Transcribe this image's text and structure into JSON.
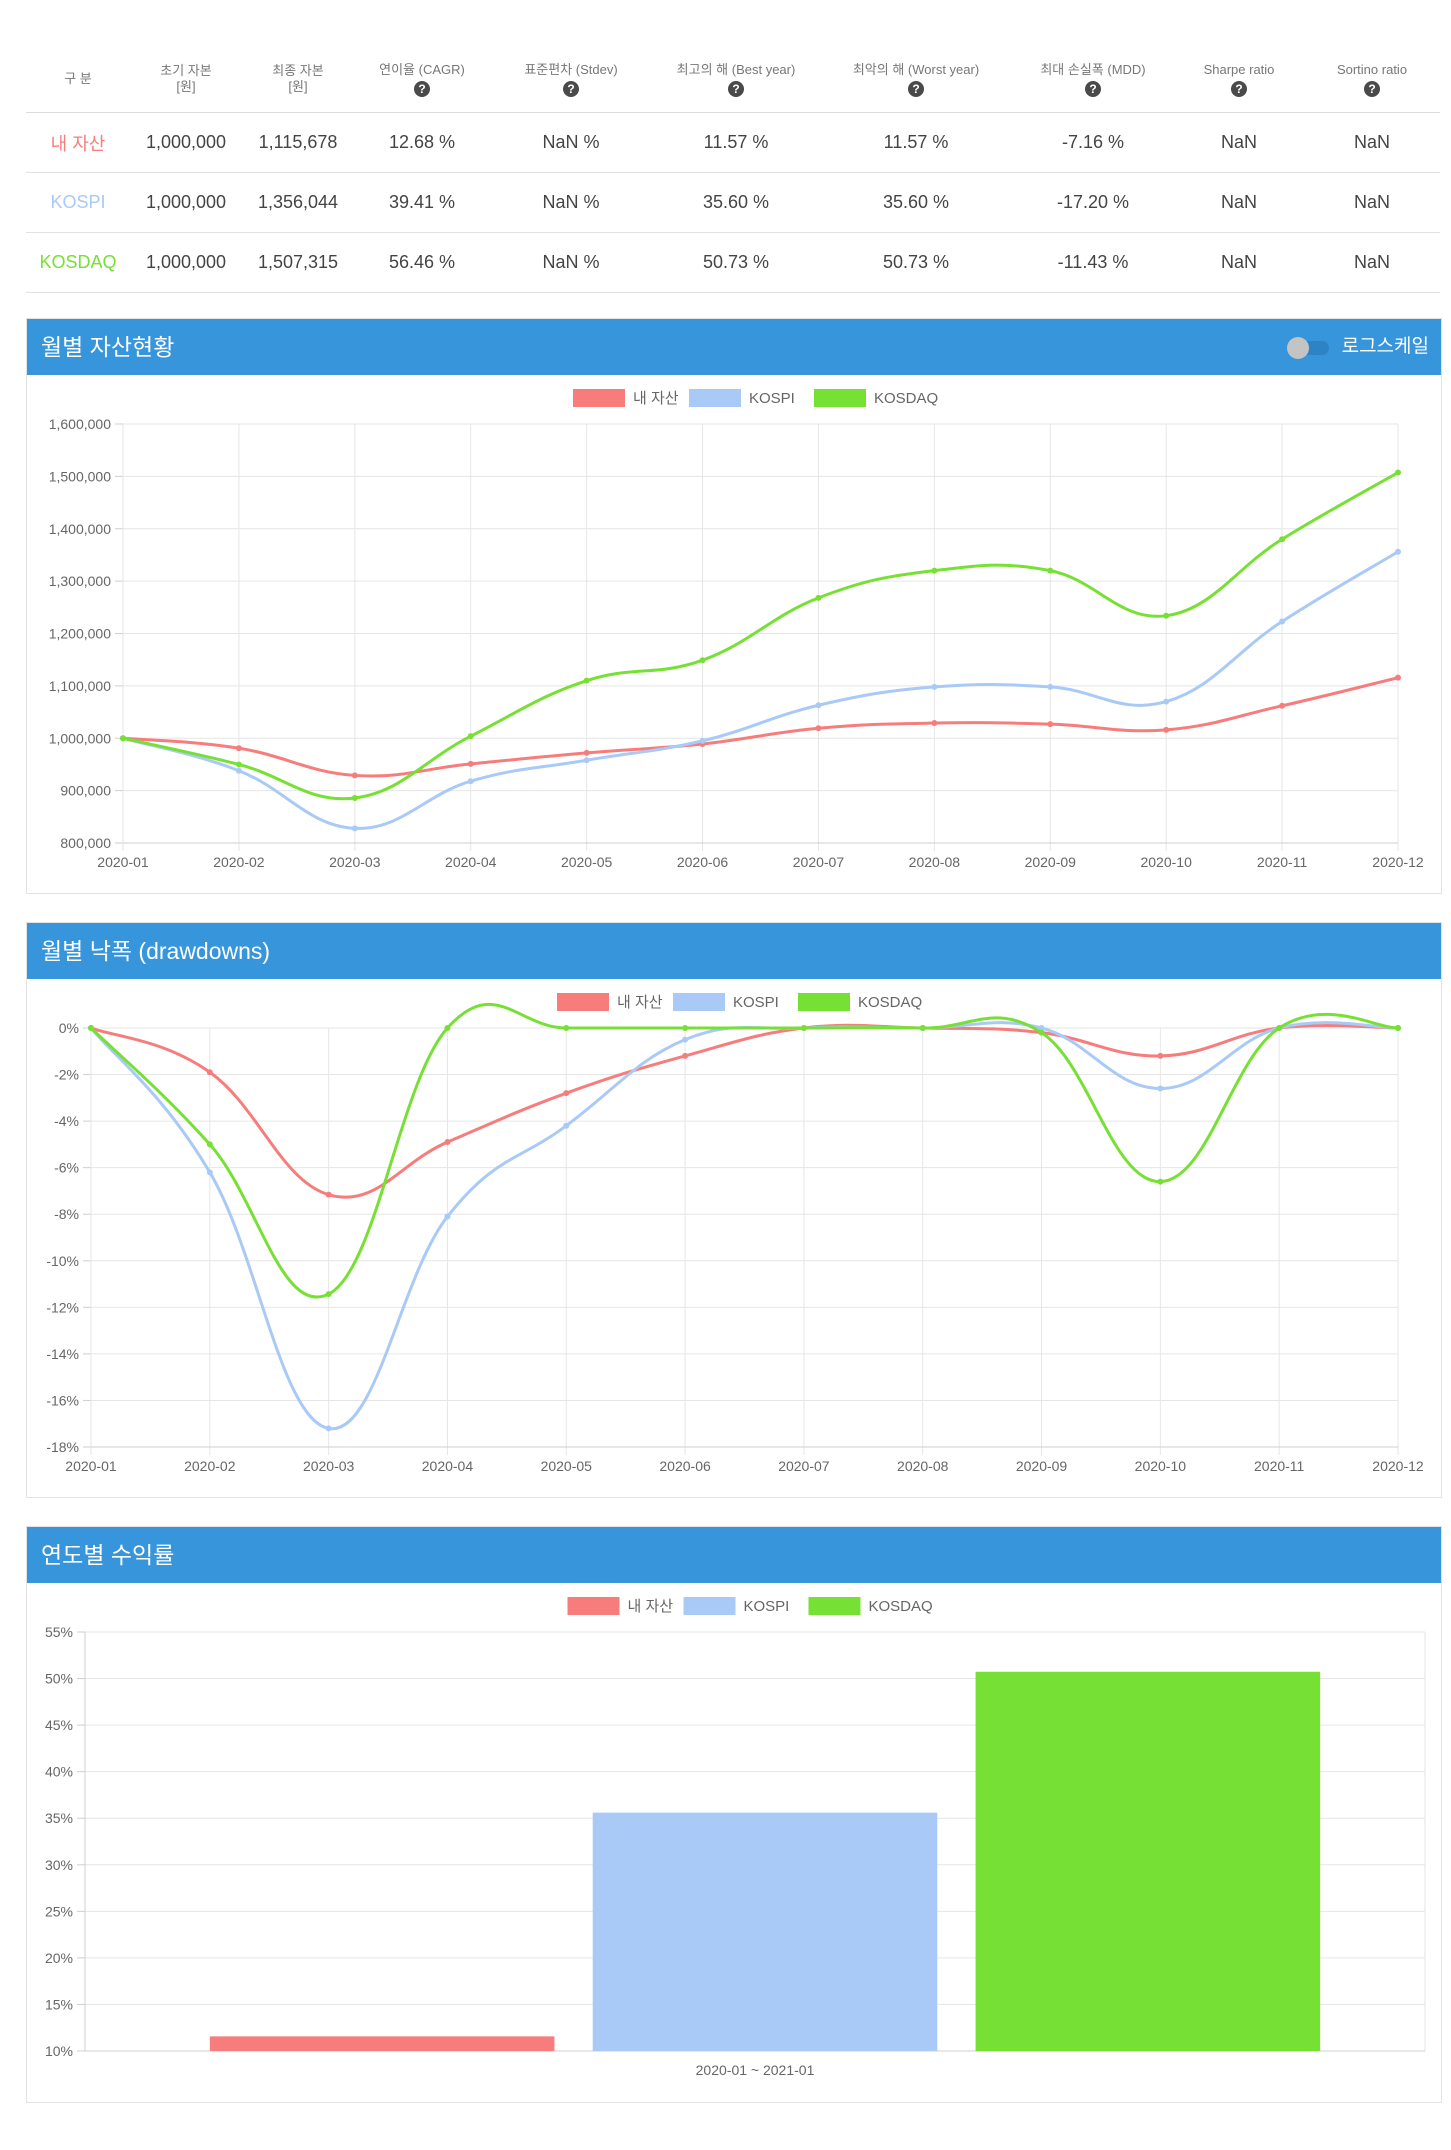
{
  "table": {
    "headers": [
      {
        "lines": [
          "구 분"
        ],
        "help": false
      },
      {
        "lines": [
          "초기 자본",
          "[원]"
        ],
        "help": false
      },
      {
        "lines": [
          "최종 자본",
          "[원]"
        ],
        "help": false
      },
      {
        "lines": [
          "연이율 (CAGR)"
        ],
        "help": true
      },
      {
        "lines": [
          "표준편차 (Stdev)"
        ],
        "help": true
      },
      {
        "lines": [
          "최고의 해 (Best year)"
        ],
        "help": true
      },
      {
        "lines": [
          "최악의 해 (Worst year)"
        ],
        "help": true
      },
      {
        "lines": [
          "최대 손실폭 (MDD)"
        ],
        "help": true
      },
      {
        "lines": [
          "Sharpe ratio"
        ],
        "help": true
      },
      {
        "lines": [
          "Sortino ratio"
        ],
        "help": true
      }
    ],
    "help_glyph": "?",
    "rows": [
      {
        "name": "내 자산",
        "color": "#f77c7c",
        "cells": [
          "1,000,000",
          "1,115,678",
          "12.68 %",
          "NaN %",
          "11.57 %",
          "11.57 %",
          "-7.16 %",
          "NaN",
          "NaN"
        ]
      },
      {
        "name": "KOSPI",
        "color": "#a9c9f7",
        "cells": [
          "1,000,000",
          "1,356,044",
          "39.41 %",
          "NaN %",
          "35.60 %",
          "35.60 %",
          "-17.20 %",
          "NaN",
          "NaN"
        ]
      },
      {
        "name": "KOSDAQ",
        "color": "#77e034",
        "cells": [
          "1,000,000",
          "1,507,315",
          "56.46 %",
          "NaN %",
          "50.73 %",
          "50.73 %",
          "-11.43 %",
          "NaN",
          "NaN"
        ]
      }
    ]
  },
  "panels": {
    "monthly_assets": {
      "title": "월별 자산현황",
      "toggle_label": "로그스케일",
      "toggle_on": false
    },
    "drawdowns": {
      "title": "월별 낙폭 (drawdowns)"
    },
    "yearly_returns": {
      "title": "연도별 수익률"
    }
  },
  "chart_data": [
    {
      "type": "line",
      "title": "월별 자산현황",
      "x": [
        "2020-01",
        "2020-02",
        "2020-03",
        "2020-04",
        "2020-05",
        "2020-06",
        "2020-07",
        "2020-08",
        "2020-09",
        "2020-10",
        "2020-11",
        "2020-12"
      ],
      "series": [
        {
          "name": "내 자산",
          "color": "#f77c7c",
          "values": [
            1000000,
            981000,
            929000,
            951000,
            972000,
            989000,
            1019000,
            1029000,
            1027000,
            1016000,
            1062000,
            1115678
          ]
        },
        {
          "name": "KOSPI",
          "color": "#a9c9f7",
          "values": [
            1000000,
            938000,
            828000,
            918000,
            958000,
            995000,
            1063000,
            1098000,
            1098000,
            1070000,
            1223000,
            1356044
          ]
        },
        {
          "name": "KOSDAQ",
          "color": "#77e034",
          "values": [
            1000000,
            950000,
            886000,
            1004000,
            1110000,
            1149000,
            1268000,
            1320000,
            1320000,
            1234000,
            1380000,
            1507315
          ]
        }
      ],
      "ylim": [
        800000,
        1600000
      ],
      "yticks": [
        800000,
        900000,
        1000000,
        1100000,
        1200000,
        1300000,
        1400000,
        1500000,
        1600000
      ],
      "ytick_labels": [
        "800,000",
        "900,000",
        "1,000,000",
        "1,100,000",
        "1,200,000",
        "1,300,000",
        "1,400,000",
        "1,500,000",
        "1,600,000"
      ],
      "legend": "top-center",
      "grid": true
    },
    {
      "type": "line",
      "title": "월별 낙폭 (drawdowns)",
      "x": [
        "2020-01",
        "2020-02",
        "2020-03",
        "2020-04",
        "2020-05",
        "2020-06",
        "2020-07",
        "2020-08",
        "2020-09",
        "2020-10",
        "2020-11",
        "2020-12"
      ],
      "series": [
        {
          "name": "내 자산",
          "color": "#f77c7c",
          "values": [
            0,
            -1.9,
            -7.16,
            -4.9,
            -2.8,
            -1.2,
            0,
            0,
            -0.2,
            -1.2,
            0,
            0
          ]
        },
        {
          "name": "KOSPI",
          "color": "#a9c9f7",
          "values": [
            0,
            -6.2,
            -17.2,
            -8.1,
            -4.2,
            -0.5,
            0,
            0,
            0,
            -2.6,
            0,
            0
          ]
        },
        {
          "name": "KOSDAQ",
          "color": "#77e034",
          "values": [
            0,
            -5.0,
            -11.43,
            0,
            0,
            0,
            0,
            0,
            -0.2,
            -6.6,
            0,
            0
          ]
        }
      ],
      "ylim": [
        -18,
        0
      ],
      "yticks": [
        0,
        -2,
        -4,
        -6,
        -8,
        -10,
        -12,
        -14,
        -16,
        -18
      ],
      "ytick_labels": [
        "0%",
        "-2%",
        "-4%",
        "-6%",
        "-8%",
        "-10%",
        "-12%",
        "-14%",
        "-16%",
        "-18%"
      ],
      "legend": "top-center",
      "grid": true
    },
    {
      "type": "bar",
      "title": "연도별 수익률",
      "categories": [
        "2020-01 ~ 2021-01"
      ],
      "series": [
        {
          "name": "내 자산",
          "color": "#f77c7c",
          "values": [
            11.57
          ]
        },
        {
          "name": "KOSPI",
          "color": "#a9c9f7",
          "values": [
            35.6
          ]
        },
        {
          "name": "KOSDAQ",
          "color": "#77e034",
          "values": [
            50.73
          ]
        }
      ],
      "ylim": [
        10,
        55
      ],
      "yticks": [
        10,
        15,
        20,
        25,
        30,
        35,
        40,
        45,
        50,
        55
      ],
      "ytick_labels": [
        "10%",
        "15%",
        "20%",
        "25%",
        "30%",
        "35%",
        "40%",
        "45%",
        "50%",
        "55%"
      ],
      "legend": "top-center",
      "grid": true
    }
  ]
}
